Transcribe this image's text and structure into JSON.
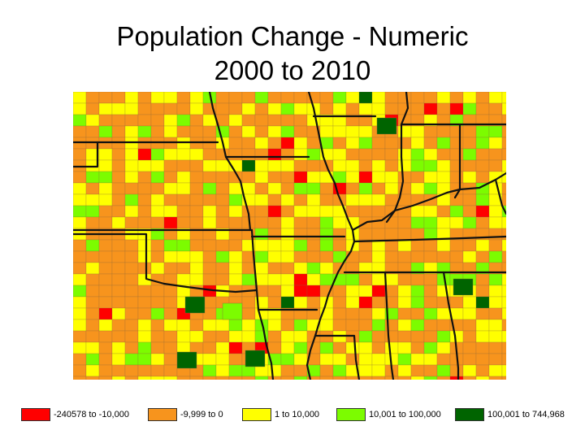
{
  "title": {
    "line1": "Population Change - Numeric",
    "line2": "2000 to 2010"
  },
  "map": {
    "base_color": "#f7941d",
    "boundary_color": "#111111",
    "county_line_color": "#8a6a3a"
  },
  "legend": [
    {
      "label": "-240578 to -10,000",
      "color": "#ff0000"
    },
    {
      "label": "-9,999 to 0",
      "color": "#f7941d"
    },
    {
      "label": "1 to 10,000",
      "color": "#ffff00"
    },
    {
      "label": "10,001 to 100,000",
      "color": "#7cfc00"
    },
    {
      "label": "100,001 to 744,968",
      "color": "#006400"
    }
  ]
}
